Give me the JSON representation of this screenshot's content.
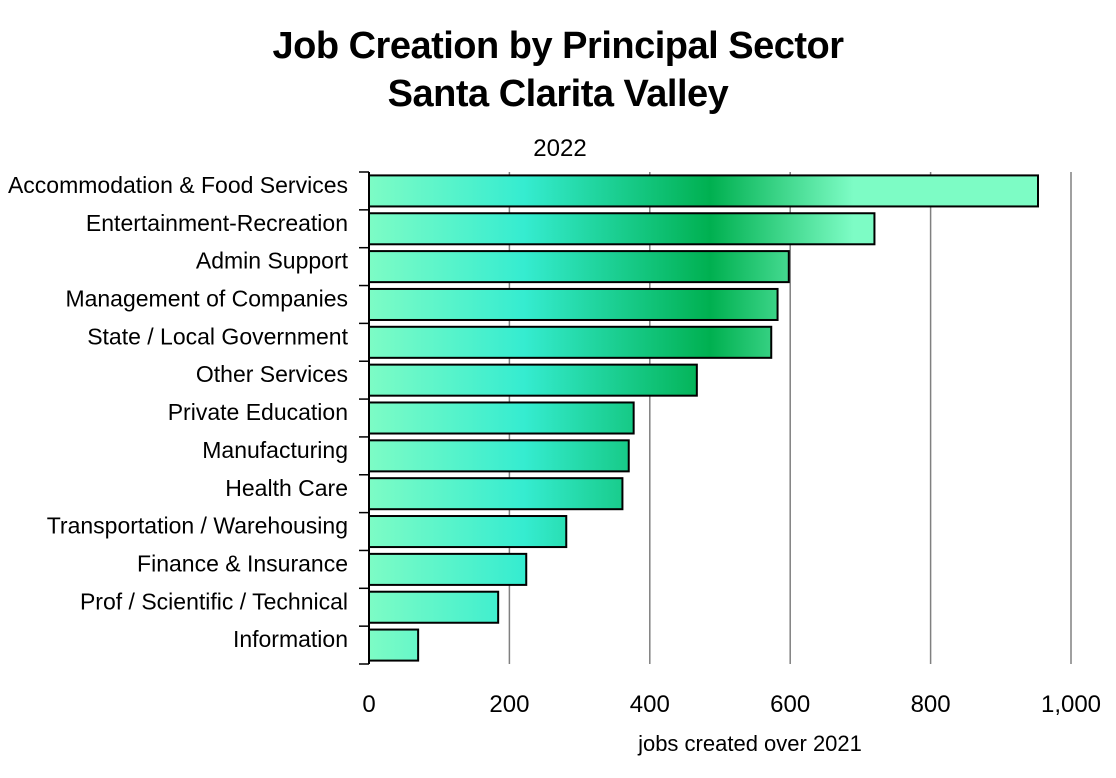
{
  "chart_data": {
    "type": "bar",
    "orientation": "horizontal",
    "title_lines": [
      "Job Creation by Principal Sector",
      "Santa Clarita Valley"
    ],
    "subtitle": "2022",
    "xlabel": "jobs created over 2021",
    "ylabel": "",
    "categories": [
      "Accommodation & Food Services",
      "Entertainment-Recreation",
      "Admin Support",
      "Management of  Companies",
      "State / Local Government",
      "Other Services",
      "Private Education",
      "Manufacturing",
      "Health Care",
      "Transportation /  Warehousing",
      "Finance & Insurance",
      "Prof / Scientific / Technical",
      "Information"
    ],
    "values": [
      953,
      720,
      598,
      582,
      573,
      467,
      377,
      370,
      361,
      281,
      224,
      184,
      70
    ],
    "xlim": [
      0,
      1000
    ],
    "xticks": [
      0,
      200,
      400,
      600,
      800,
      1000
    ],
    "xtick_labels": [
      "0",
      "200",
      "400",
      "600",
      "800",
      "1,000"
    ],
    "grid": "vertical",
    "legend": "none",
    "colors": {
      "bar_light": "#7dfcc5",
      "bar_mid": "#35ecd0",
      "bar_dark": "#00b050",
      "grid": "#808080",
      "outline": "#000000"
    }
  }
}
